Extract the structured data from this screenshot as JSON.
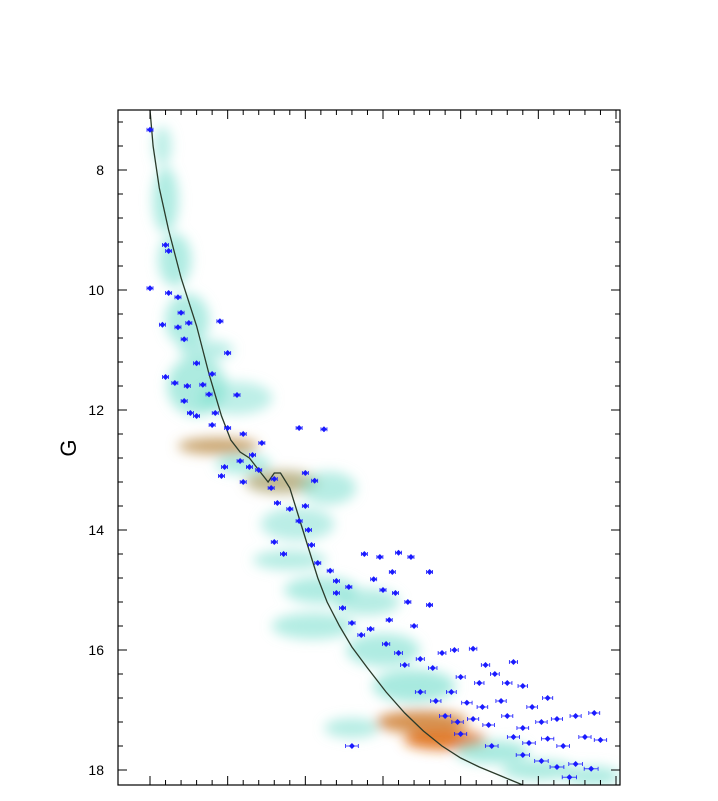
{
  "chart_data": {
    "type": "scatter",
    "title": "",
    "xlabel": "",
    "ylabel": "G",
    "ylim": [
      7.0,
      18.25
    ],
    "y_inverted": true,
    "xlim": [
      0.0,
      3.0
    ],
    "y_ticks": [
      8,
      10,
      12,
      14,
      16,
      18
    ],
    "y_tick_labels": [
      "8",
      "10",
      "12",
      "14",
      "16",
      "18"
    ],
    "grid": false,
    "point_color": "#1a1aff",
    "isochrone_color": "#2a3a2a",
    "density_colors": {
      "low": "#7fe0d0",
      "high": "#e0701a"
    },
    "isochrone": {
      "x": [
        0.0,
        0.02,
        0.06,
        0.12,
        0.2,
        0.3,
        0.38,
        0.46,
        0.52,
        0.58,
        0.64,
        0.7,
        0.76,
        0.8,
        0.84,
        0.9,
        0.96,
        1.02,
        1.08,
        1.14,
        1.22,
        1.3,
        1.4,
        1.52,
        1.64,
        1.76,
        1.88,
        2.0,
        2.12,
        2.26,
        2.4
      ],
      "y": [
        7.0,
        7.6,
        8.3,
        9.0,
        9.8,
        10.6,
        11.4,
        12.1,
        12.5,
        12.7,
        12.8,
        13.0,
        13.2,
        13.05,
        13.05,
        13.3,
        13.8,
        14.3,
        14.8,
        15.2,
        15.6,
        15.95,
        16.3,
        16.7,
        17.05,
        17.35,
        17.6,
        17.8,
        17.95,
        18.1,
        18.25
      ]
    },
    "density_blobs": [
      {
        "x": 0.08,
        "y": 7.6,
        "w": 0.1,
        "h": 0.6,
        "level": 0.3
      },
      {
        "x": 0.1,
        "y": 8.5,
        "w": 0.14,
        "h": 1.0,
        "level": 0.5
      },
      {
        "x": 0.16,
        "y": 9.5,
        "w": 0.18,
        "h": 0.8,
        "level": 0.5
      },
      {
        "x": 0.24,
        "y": 10.5,
        "w": 0.24,
        "h": 0.8,
        "level": 0.5
      },
      {
        "x": 0.36,
        "y": 11.0,
        "w": 0.3,
        "h": 0.3,
        "level": 0.35
      },
      {
        "x": 0.3,
        "y": 11.6,
        "w": 0.32,
        "h": 0.9,
        "level": 0.55
      },
      {
        "x": 0.55,
        "y": 11.8,
        "w": 0.4,
        "h": 0.5,
        "level": 0.3
      },
      {
        "x": 0.44,
        "y": 12.6,
        "w": 0.44,
        "h": 0.25,
        "level": 0.9
      },
      {
        "x": 0.6,
        "y": 12.9,
        "w": 0.3,
        "h": 0.3,
        "level": 0.5
      },
      {
        "x": 0.85,
        "y": 13.2,
        "w": 0.4,
        "h": 0.35,
        "level": 0.85
      },
      {
        "x": 1.15,
        "y": 13.3,
        "w": 0.3,
        "h": 0.5,
        "level": 0.4
      },
      {
        "x": 0.95,
        "y": 13.9,
        "w": 0.4,
        "h": 0.5,
        "level": 0.35
      },
      {
        "x": 0.9,
        "y": 14.5,
        "w": 0.4,
        "h": 0.3,
        "level": 0.4
      },
      {
        "x": 1.1,
        "y": 15.0,
        "w": 0.4,
        "h": 0.4,
        "level": 0.5
      },
      {
        "x": 1.05,
        "y": 15.6,
        "w": 0.45,
        "h": 0.4,
        "level": 0.45
      },
      {
        "x": 1.4,
        "y": 15.2,
        "w": 0.35,
        "h": 0.4,
        "level": 0.4
      },
      {
        "x": 1.5,
        "y": 16.0,
        "w": 0.4,
        "h": 0.5,
        "level": 0.5
      },
      {
        "x": 1.7,
        "y": 16.6,
        "w": 0.45,
        "h": 0.5,
        "level": 0.6
      },
      {
        "x": 1.75,
        "y": 17.2,
        "w": 0.5,
        "h": 0.35,
        "level": 0.95
      },
      {
        "x": 1.9,
        "y": 17.5,
        "w": 0.45,
        "h": 0.3,
        "level": 1.0
      },
      {
        "x": 1.3,
        "y": 17.3,
        "w": 0.3,
        "h": 0.3,
        "level": 0.4
      },
      {
        "x": 2.2,
        "y": 17.7,
        "w": 0.4,
        "h": 0.35,
        "level": 0.6
      },
      {
        "x": 2.5,
        "y": 18.0,
        "w": 0.4,
        "h": 0.3,
        "level": 0.55
      },
      {
        "x": 2.85,
        "y": 18.1,
        "w": 0.3,
        "h": 0.3,
        "level": 0.5
      }
    ],
    "points": [
      {
        "x": 0.0,
        "y": 7.33
      },
      {
        "x": 0.1,
        "y": 9.25
      },
      {
        "x": 0.12,
        "y": 9.35
      },
      {
        "x": 0.0,
        "y": 9.97
      },
      {
        "x": 0.12,
        "y": 10.05
      },
      {
        "x": 0.18,
        "y": 10.12
      },
      {
        "x": 0.2,
        "y": 10.38
      },
      {
        "x": 0.25,
        "y": 10.55
      },
      {
        "x": 0.18,
        "y": 10.62
      },
      {
        "x": 0.08,
        "y": 10.58
      },
      {
        "x": 0.22,
        "y": 10.82
      },
      {
        "x": 0.45,
        "y": 10.52
      },
      {
        "x": 0.5,
        "y": 11.05
      },
      {
        "x": 0.3,
        "y": 11.22
      },
      {
        "x": 0.4,
        "y": 11.4
      },
      {
        "x": 0.1,
        "y": 11.45
      },
      {
        "x": 0.16,
        "y": 11.55
      },
      {
        "x": 0.24,
        "y": 11.6
      },
      {
        "x": 0.34,
        "y": 11.58
      },
      {
        "x": 0.38,
        "y": 11.74
      },
      {
        "x": 0.22,
        "y": 11.85
      },
      {
        "x": 0.26,
        "y": 12.05
      },
      {
        "x": 0.3,
        "y": 12.1
      },
      {
        "x": 0.42,
        "y": 12.05
      },
      {
        "x": 0.56,
        "y": 11.75
      },
      {
        "x": 0.4,
        "y": 12.25
      },
      {
        "x": 0.5,
        "y": 12.3
      },
      {
        "x": 0.6,
        "y": 12.4
      },
      {
        "x": 0.66,
        "y": 12.75
      },
      {
        "x": 0.58,
        "y": 12.85
      },
      {
        "x": 0.48,
        "y": 12.95
      },
      {
        "x": 0.46,
        "y": 13.1
      },
      {
        "x": 0.6,
        "y": 13.2
      },
      {
        "x": 0.7,
        "y": 13.0
      },
      {
        "x": 0.8,
        "y": 13.15
      },
      {
        "x": 0.78,
        "y": 13.3
      },
      {
        "x": 0.82,
        "y": 13.55
      },
      {
        "x": 0.96,
        "y": 12.3
      },
      {
        "x": 1.12,
        "y": 12.32
      },
      {
        "x": 1.06,
        "y": 13.18
      },
      {
        "x": 1.0,
        "y": 13.6
      },
      {
        "x": 0.9,
        "y": 13.65
      },
      {
        "x": 0.96,
        "y": 13.85
      },
      {
        "x": 1.02,
        "y": 14.0
      },
      {
        "x": 0.8,
        "y": 14.2
      },
      {
        "x": 0.86,
        "y": 14.4
      },
      {
        "x": 1.04,
        "y": 14.25
      },
      {
        "x": 1.08,
        "y": 14.55
      },
      {
        "x": 1.16,
        "y": 14.68
      },
      {
        "x": 1.2,
        "y": 14.85
      },
      {
        "x": 1.28,
        "y": 14.95
      },
      {
        "x": 1.38,
        "y": 14.4
      },
      {
        "x": 1.48,
        "y": 14.45
      },
      {
        "x": 1.6,
        "y": 14.38
      },
      {
        "x": 1.68,
        "y": 14.45
      },
      {
        "x": 1.8,
        "y": 14.7
      },
      {
        "x": 1.44,
        "y": 14.82
      },
      {
        "x": 1.5,
        "y": 15.0
      },
      {
        "x": 1.58,
        "y": 15.05
      },
      {
        "x": 1.66,
        "y": 15.2
      },
      {
        "x": 1.24,
        "y": 15.3
      },
      {
        "x": 1.3,
        "y": 15.55
      },
      {
        "x": 1.36,
        "y": 15.75
      },
      {
        "x": 1.42,
        "y": 15.65
      },
      {
        "x": 1.54,
        "y": 15.5
      },
      {
        "x": 1.7,
        "y": 15.6
      },
      {
        "x": 1.52,
        "y": 15.9
      },
      {
        "x": 1.6,
        "y": 16.05
      },
      {
        "x": 1.64,
        "y": 16.25
      },
      {
        "x": 1.74,
        "y": 16.15
      },
      {
        "x": 1.82,
        "y": 16.3
      },
      {
        "x": 1.88,
        "y": 16.05
      },
      {
        "x": 1.96,
        "y": 16.0
      },
      {
        "x": 2.08,
        "y": 15.98
      },
      {
        "x": 2.16,
        "y": 16.25
      },
      {
        "x": 2.0,
        "y": 16.45
      },
      {
        "x": 2.12,
        "y": 16.55
      },
      {
        "x": 2.22,
        "y": 16.4
      },
      {
        "x": 2.34,
        "y": 16.2
      },
      {
        "x": 2.3,
        "y": 16.55
      },
      {
        "x": 1.74,
        "y": 16.7
      },
      {
        "x": 1.84,
        "y": 16.85
      },
      {
        "x": 1.94,
        "y": 16.7
      },
      {
        "x": 2.04,
        "y": 16.88
      },
      {
        "x": 2.14,
        "y": 16.95
      },
      {
        "x": 2.26,
        "y": 16.85
      },
      {
        "x": 2.4,
        "y": 16.6
      },
      {
        "x": 2.46,
        "y": 16.95
      },
      {
        "x": 2.56,
        "y": 16.8
      },
      {
        "x": 1.9,
        "y": 17.1
      },
      {
        "x": 1.98,
        "y": 17.2
      },
      {
        "x": 2.08,
        "y": 17.15
      },
      {
        "x": 2.18,
        "y": 17.25
      },
      {
        "x": 2.3,
        "y": 17.1
      },
      {
        "x": 2.4,
        "y": 17.3
      },
      {
        "x": 2.52,
        "y": 17.2
      },
      {
        "x": 2.62,
        "y": 17.15
      },
      {
        "x": 2.74,
        "y": 17.1
      },
      {
        "x": 2.86,
        "y": 17.05
      },
      {
        "x": 2.34,
        "y": 17.45
      },
      {
        "x": 2.44,
        "y": 17.55
      },
      {
        "x": 2.56,
        "y": 17.48
      },
      {
        "x": 2.66,
        "y": 17.6
      },
      {
        "x": 2.8,
        "y": 17.45
      },
      {
        "x": 2.9,
        "y": 17.5
      },
      {
        "x": 2.4,
        "y": 17.75
      },
      {
        "x": 2.52,
        "y": 17.85
      },
      {
        "x": 2.62,
        "y": 17.95
      },
      {
        "x": 2.74,
        "y": 17.9
      },
      {
        "x": 2.84,
        "y": 17.98
      },
      {
        "x": 2.7,
        "y": 18.12
      },
      {
        "x": 1.3,
        "y": 17.6
      },
      {
        "x": 1.0,
        "y": 13.05
      },
      {
        "x": 0.72,
        "y": 12.55
      },
      {
        "x": 0.64,
        "y": 12.95
      },
      {
        "x": 1.8,
        "y": 15.25
      },
      {
        "x": 1.2,
        "y": 15.05
      },
      {
        "x": 1.56,
        "y": 14.7
      },
      {
        "x": 2.0,
        "y": 17.4
      },
      {
        "x": 2.2,
        "y": 17.6
      }
    ]
  }
}
